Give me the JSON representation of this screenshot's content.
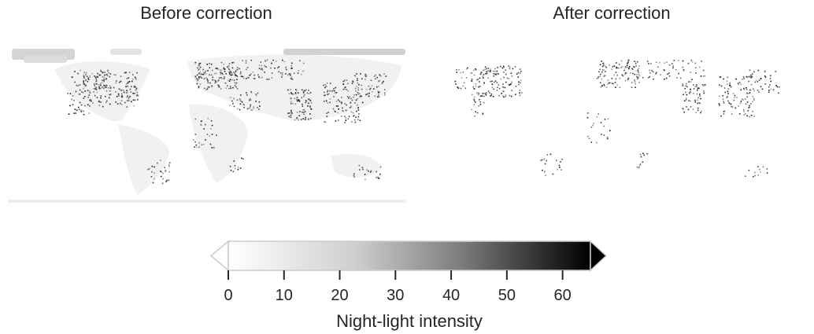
{
  "panels": [
    {
      "title": "Before correction"
    },
    {
      "title": "After correction"
    }
  ],
  "colorbar": {
    "label": "Night-light intensity",
    "ticks": [
      "0",
      "10",
      "20",
      "30",
      "40",
      "50",
      "60"
    ],
    "range": [
      0,
      65
    ],
    "extend": "both",
    "colormap": [
      "#ffffff",
      "#000000"
    ]
  }
}
